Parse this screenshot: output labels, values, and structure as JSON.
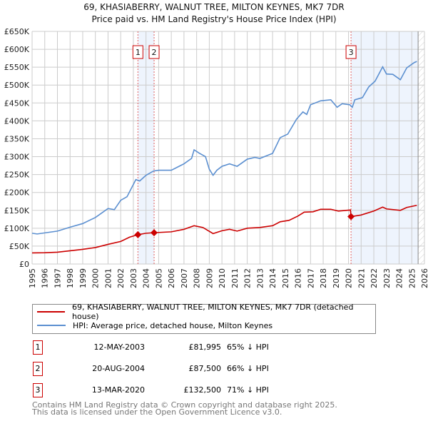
{
  "chart_data": {
    "type": "line",
    "title": "69, KHASIABERRY, WALNUT TREE, MILTON KEYNES, MK7 7DR",
    "subtitle": "Price paid vs. HM Land Registry's House Price Index (HPI)",
    "xlim": [
      1995,
      2026
    ],
    "ylim": [
      0,
      650000
    ],
    "x_ticks": [
      "1995",
      "1996",
      "1997",
      "1998",
      "1999",
      "2000",
      "2001",
      "2002",
      "2003",
      "2004",
      "2005",
      "2006",
      "2007",
      "2008",
      "2009",
      "2010",
      "2011",
      "2012",
      "2013",
      "2014",
      "2015",
      "2016",
      "2017",
      "2018",
      "2019",
      "2020",
      "2021",
      "2022",
      "2023",
      "2024",
      "2025",
      "2026"
    ],
    "y_ticks": [
      {
        "v": 0,
        "label": "£0"
      },
      {
        "v": 50000,
        "label": "£50K"
      },
      {
        "v": 100000,
        "label": "£100K"
      },
      {
        "v": 150000,
        "label": "£150K"
      },
      {
        "v": 200000,
        "label": "£200K"
      },
      {
        "v": 250000,
        "label": "£250K"
      },
      {
        "v": 300000,
        "label": "£300K"
      },
      {
        "v": 350000,
        "label": "£350K"
      },
      {
        "v": 400000,
        "label": "£400K"
      },
      {
        "v": 450000,
        "label": "£450K"
      },
      {
        "v": 500000,
        "label": "£500K"
      },
      {
        "v": 550000,
        "label": "£550K"
      },
      {
        "v": 600000,
        "label": "£600K"
      },
      {
        "v": 650000,
        "label": "£650K"
      }
    ],
    "grid": true,
    "series": [
      {
        "name": "69, KHASIABERRY, WALNUT TREE, MILTON KEYNES, MK7 7DR (detached house)",
        "color": "#cc0000",
        "points": [
          [
            1995,
            31000
          ],
          [
            1996,
            31500
          ],
          [
            1997,
            33000
          ],
          [
            1998,
            37000
          ],
          [
            1999,
            41000
          ],
          [
            2000,
            46000
          ],
          [
            2001,
            55000
          ],
          [
            2002,
            63000
          ],
          [
            2002.7,
            75000
          ],
          [
            2003.36,
            81995
          ],
          [
            2004,
            86000
          ],
          [
            2004.64,
            87500
          ],
          [
            2006,
            90000
          ],
          [
            2007,
            97000
          ],
          [
            2007.8,
            107000
          ],
          [
            2008.5,
            102000
          ],
          [
            2009.3,
            85000
          ],
          [
            2010,
            93000
          ],
          [
            2010.6,
            97000
          ],
          [
            2011.2,
            92000
          ],
          [
            2012,
            100000
          ],
          [
            2013,
            102000
          ],
          [
            2014,
            107000
          ],
          [
            2014.6,
            118000
          ],
          [
            2015.3,
            122000
          ],
          [
            2016,
            134000
          ],
          [
            2016.5,
            145000
          ],
          [
            2017.2,
            146000
          ],
          [
            2017.8,
            153000
          ],
          [
            2018.6,
            153000
          ],
          [
            2019.2,
            148000
          ],
          [
            2020.15,
            151000
          ],
          [
            2020.2,
            132500
          ],
          [
            2021,
            137000
          ],
          [
            2022,
            148000
          ],
          [
            2022.7,
            159000
          ],
          [
            2023,
            154000
          ],
          [
            2024.1,
            150000
          ],
          [
            2024.6,
            158000
          ],
          [
            2025.4,
            164000
          ]
        ]
      },
      {
        "name": "HPI: Average price, detached house, Milton Keynes",
        "color": "#5b8fd0",
        "points": [
          [
            1995,
            86000
          ],
          [
            1995.4,
            84000
          ],
          [
            1996,
            87000
          ],
          [
            1997,
            92000
          ],
          [
            1998,
            103000
          ],
          [
            1999,
            113000
          ],
          [
            2000,
            130000
          ],
          [
            2001,
            155000
          ],
          [
            2001.5,
            152000
          ],
          [
            2002,
            178000
          ],
          [
            2002.5,
            188000
          ],
          [
            2003.2,
            236000
          ],
          [
            2003.5,
            232000
          ],
          [
            2004,
            248000
          ],
          [
            2004.6,
            260000
          ],
          [
            2005,
            262000
          ],
          [
            2006,
            262000
          ],
          [
            2007,
            280000
          ],
          [
            2007.6,
            295000
          ],
          [
            2007.8,
            319000
          ],
          [
            2008.2,
            310000
          ],
          [
            2008.7,
            300000
          ],
          [
            2009,
            265000
          ],
          [
            2009.3,
            248000
          ],
          [
            2009.6,
            262000
          ],
          [
            2010,
            273000
          ],
          [
            2010.6,
            280000
          ],
          [
            2011.2,
            273000
          ],
          [
            2012,
            293000
          ],
          [
            2012.6,
            298000
          ],
          [
            2013,
            295000
          ],
          [
            2014,
            309000
          ],
          [
            2014.6,
            353000
          ],
          [
            2015.2,
            363000
          ],
          [
            2015.9,
            405000
          ],
          [
            2016.4,
            425000
          ],
          [
            2016.7,
            418000
          ],
          [
            2017,
            445000
          ],
          [
            2017.8,
            456000
          ],
          [
            2018.6,
            459000
          ],
          [
            2019.1,
            438000
          ],
          [
            2019.5,
            448000
          ],
          [
            2020.1,
            445000
          ],
          [
            2020.3,
            438000
          ],
          [
            2020.5,
            459000
          ],
          [
            2021.1,
            465000
          ],
          [
            2021.6,
            495000
          ],
          [
            2022.1,
            511000
          ],
          [
            2022.7,
            551000
          ],
          [
            2023,
            531000
          ],
          [
            2023.5,
            530000
          ],
          [
            2024.1,
            515000
          ],
          [
            2024.6,
            548000
          ],
          [
            2025.2,
            563000
          ],
          [
            2025.4,
            566000
          ]
        ]
      }
    ],
    "sales": [
      {
        "label": "1",
        "x": 2003.36,
        "value": 81995,
        "date": "12-MAY-2003",
        "price": "£81,995",
        "hpi": "65% ↓ HPI"
      },
      {
        "label": "2",
        "x": 2004.64,
        "value": 87500,
        "date": "20-AUG-2004",
        "price": "£87,500",
        "hpi": "66% ↓ HPI"
      },
      {
        "label": "3",
        "x": 2020.2,
        "value": 132500,
        "date": "13-MAR-2020",
        "price": "£132,500",
        "hpi": "71% ↓ HPI"
      }
    ],
    "shaded_ranges": [
      [
        2003.36,
        2004.64
      ],
      [
        2020.2,
        2025.5
      ]
    ],
    "projection_from": 2025.5,
    "legend_position": "below"
  },
  "footer": {
    "line1": "Contains HM Land Registry data © Crown copyright and database right 2025.",
    "line2": "This data is licensed under the Open Government Licence v3.0."
  }
}
